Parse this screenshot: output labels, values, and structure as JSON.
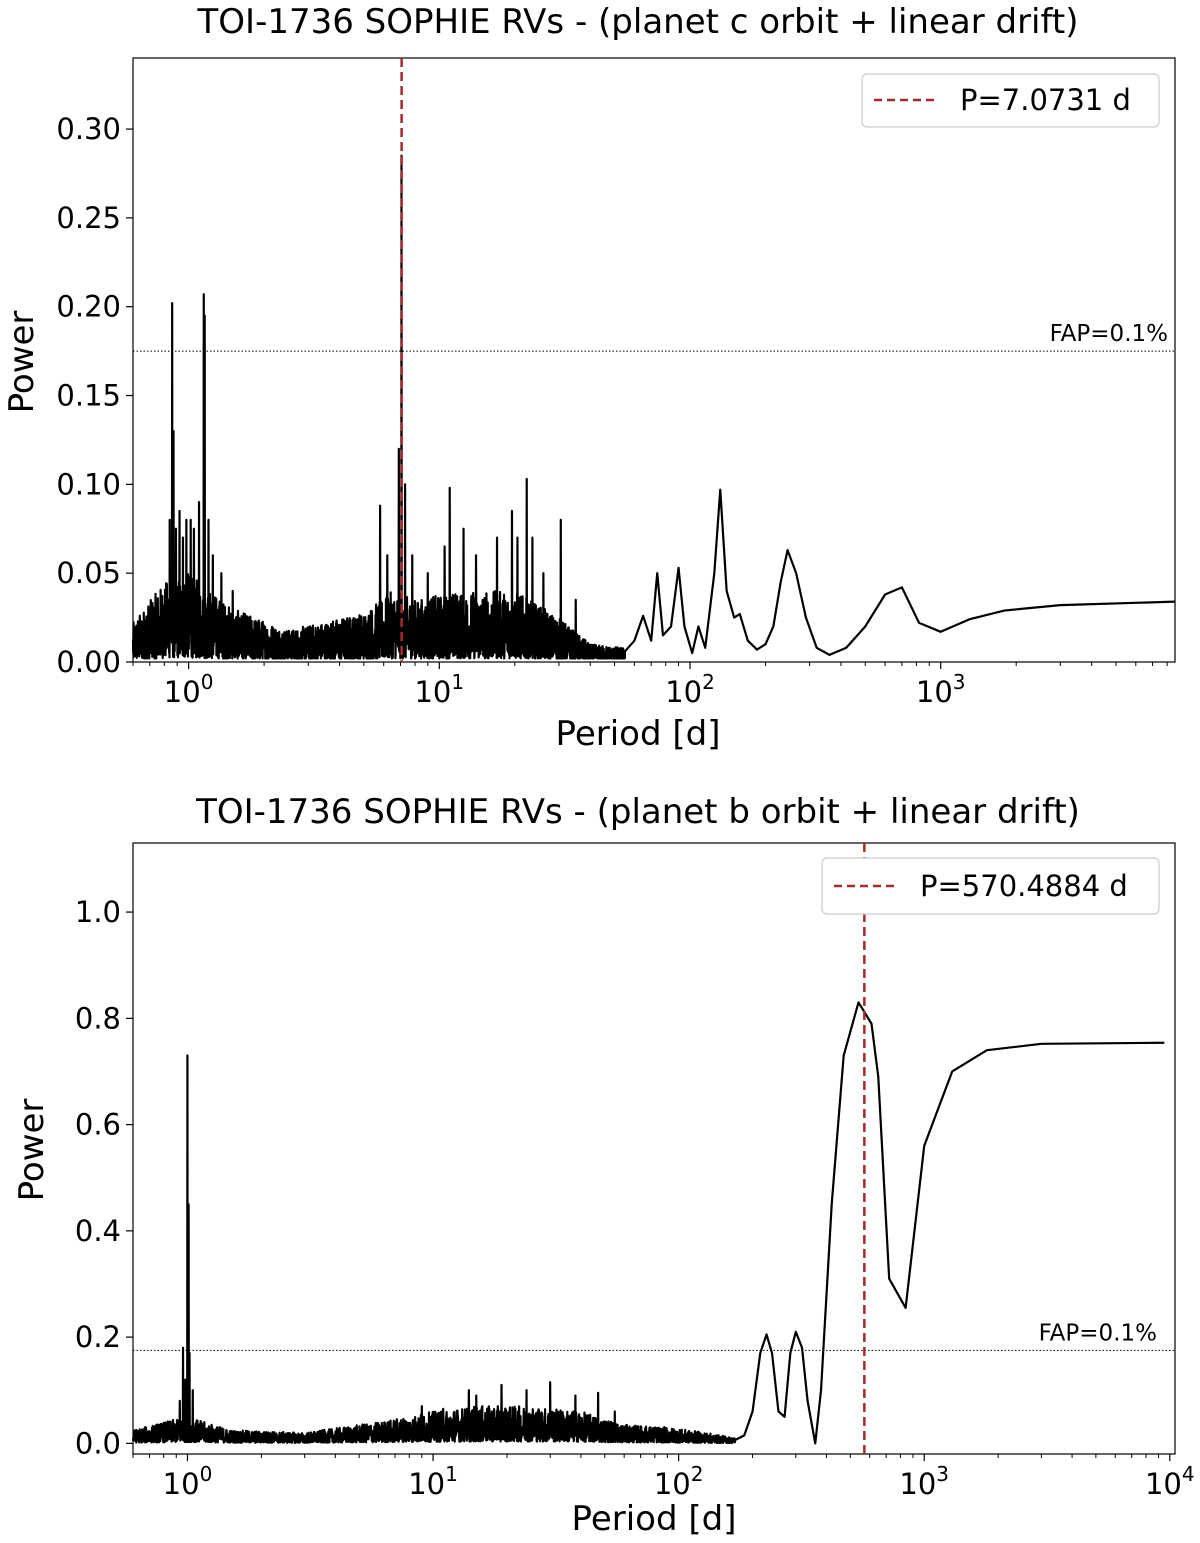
{
  "chart_data": [
    {
      "type": "line",
      "title": "TOI-1736 SOPHIE RVs - (planet c orbit + linear drift)",
      "xlabel": "Period [d]",
      "ylabel": "Power",
      "x_scale": "log",
      "xlim": [
        0.6,
        8600
      ],
      "ylim": [
        0,
        0.34
      ],
      "x_ticks": [
        {
          "value": 1,
          "label_base": "10",
          "label_exp": "0"
        },
        {
          "value": 10,
          "label_base": "10",
          "label_exp": "1"
        },
        {
          "value": 100,
          "label_base": "10",
          "label_exp": "2"
        },
        {
          "value": 1000,
          "label_base": "10",
          "label_exp": "3"
        }
      ],
      "y_ticks": [
        {
          "value": 0.0,
          "label": "0.00"
        },
        {
          "value": 0.05,
          "label": "0.05"
        },
        {
          "value": 0.1,
          "label": "0.10"
        },
        {
          "value": 0.15,
          "label": "0.15"
        },
        {
          "value": 0.2,
          "label": "0.20"
        },
        {
          "value": 0.25,
          "label": "0.25"
        },
        {
          "value": 0.3,
          "label": "0.30"
        }
      ],
      "fap_level": 0.175,
      "fap_label": "FAP=0.1%",
      "marked_period": 7.0731,
      "legend_label": "P=7.0731 d",
      "legend_position": "top-right",
      "line_color": "#000000",
      "marker_color": "#a52a2a",
      "noise_amp": [
        [
          0.6,
          0.022
        ],
        [
          0.8,
          0.045
        ],
        [
          1.0,
          0.05
        ],
        [
          1.5,
          0.03
        ],
        [
          2.5,
          0.018
        ],
        [
          5,
          0.028
        ],
        [
          6.5,
          0.04
        ],
        [
          8,
          0.035
        ],
        [
          12,
          0.04
        ],
        [
          20,
          0.04
        ],
        [
          30,
          0.025
        ],
        [
          40,
          0.01
        ],
        [
          55,
          0.008
        ]
      ],
      "spikes": [
        [
          0.86,
          0.202
        ],
        [
          0.87,
          0.13
        ],
        [
          0.84,
          0.08
        ],
        [
          0.89,
          0.075
        ],
        [
          0.92,
          0.085
        ],
        [
          0.95,
          0.07
        ],
        [
          0.98,
          0.08
        ],
        [
          1.02,
          0.08
        ],
        [
          1.05,
          0.075
        ],
        [
          1.1,
          0.09
        ],
        [
          1.15,
          0.207
        ],
        [
          1.16,
          0.195
        ],
        [
          1.2,
          0.08
        ],
        [
          1.25,
          0.06
        ],
        [
          1.35,
          0.05
        ],
        [
          1.5,
          0.04
        ],
        [
          5.8,
          0.088
        ],
        [
          6.2,
          0.06
        ],
        [
          6.9,
          0.12
        ],
        [
          7.07,
          0.285
        ],
        [
          7.3,
          0.1
        ],
        [
          7.8,
          0.06
        ],
        [
          9.0,
          0.05
        ],
        [
          10.5,
          0.065
        ],
        [
          11.0,
          0.098
        ],
        [
          12.5,
          0.075
        ],
        [
          14,
          0.06
        ],
        [
          17,
          0.07
        ],
        [
          19.5,
          0.085
        ],
        [
          20.5,
          0.07
        ],
        [
          22.3,
          0.103
        ],
        [
          23.5,
          0.07
        ],
        [
          26,
          0.05
        ],
        [
          30.5,
          0.08
        ],
        [
          35,
          0.035
        ]
      ],
      "smooth": [
        [
          55,
          0.006
        ],
        [
          60,
          0.012
        ],
        [
          65,
          0.026
        ],
        [
          70,
          0.012
        ],
        [
          74,
          0.05
        ],
        [
          78,
          0.015
        ],
        [
          84,
          0.02
        ],
        [
          90,
          0.053
        ],
        [
          95,
          0.02
        ],
        [
          102,
          0.005
        ],
        [
          108,
          0.02
        ],
        [
          115,
          0.008
        ],
        [
          125,
          0.05
        ],
        [
          132,
          0.097
        ],
        [
          140,
          0.04
        ],
        [
          150,
          0.025
        ],
        [
          158,
          0.027
        ],
        [
          170,
          0.012
        ],
        [
          185,
          0.007
        ],
        [
          200,
          0.01
        ],
        [
          215,
          0.02
        ],
        [
          230,
          0.045
        ],
        [
          245,
          0.063
        ],
        [
          265,
          0.05
        ],
        [
          290,
          0.025
        ],
        [
          320,
          0.008
        ],
        [
          360,
          0.004
        ],
        [
          420,
          0.008
        ],
        [
          500,
          0.02
        ],
        [
          600,
          0.038
        ],
        [
          700,
          0.042
        ],
        [
          820,
          0.022
        ],
        [
          1000,
          0.017
        ],
        [
          1300,
          0.024
        ],
        [
          1800,
          0.029
        ],
        [
          3000,
          0.032
        ],
        [
          8600,
          0.034
        ]
      ]
    },
    {
      "type": "line",
      "title": "TOI-1736 SOPHIE RVs - (planet b orbit + linear drift)",
      "xlabel": "Period [d]",
      "ylabel": "Power",
      "x_scale": "log",
      "xlim": [
        0.6,
        10500
      ],
      "ylim": [
        -0.02,
        1.13
      ],
      "x_ticks": [
        {
          "value": 1,
          "label_base": "10",
          "label_exp": "0"
        },
        {
          "value": 10,
          "label_base": "10",
          "label_exp": "1"
        },
        {
          "value": 100,
          "label_base": "10",
          "label_exp": "2"
        },
        {
          "value": 1000,
          "label_base": "10",
          "label_exp": "3"
        },
        {
          "value": 10000,
          "label_base": "10",
          "label_exp": "4"
        }
      ],
      "y_ticks": [
        {
          "value": 0.0,
          "label": "0.0"
        },
        {
          "value": 0.2,
          "label": "0.2"
        },
        {
          "value": 0.4,
          "label": "0.4"
        },
        {
          "value": 0.6,
          "label": "0.6"
        },
        {
          "value": 0.8,
          "label": "0.8"
        },
        {
          "value": 1.0,
          "label": "1.0"
        }
      ],
      "fap_level": 0.175,
      "fap_label": "FAP=0.1%",
      "marked_period": 570.4884,
      "legend_label": "P=570.4884 d",
      "legend_position": "top-right",
      "line_color": "#000000",
      "marker_color": "#a52a2a",
      "noise_amp": [
        [
          0.6,
          0.025
        ],
        [
          0.8,
          0.04
        ],
        [
          1.0,
          0.05
        ],
        [
          1.5,
          0.025
        ],
        [
          3,
          0.02
        ],
        [
          6,
          0.04
        ],
        [
          10,
          0.06
        ],
        [
          15,
          0.07
        ],
        [
          25,
          0.07
        ],
        [
          40,
          0.06
        ],
        [
          60,
          0.035
        ],
        [
          90,
          0.03
        ],
        [
          130,
          0.02
        ],
        [
          170,
          0.01
        ]
      ],
      "spikes": [
        [
          0.96,
          0.18
        ],
        [
          0.98,
          0.12
        ],
        [
          1.0,
          0.73
        ],
        [
          1.01,
          0.45
        ],
        [
          1.02,
          0.17
        ],
        [
          1.05,
          0.1
        ],
        [
          0.93,
          0.08
        ],
        [
          9,
          0.07
        ],
        [
          11,
          0.065
        ],
        [
          14,
          0.1
        ],
        [
          15,
          0.09
        ],
        [
          19,
          0.11
        ],
        [
          24,
          0.1
        ],
        [
          30,
          0.115
        ],
        [
          38,
          0.09
        ],
        [
          47,
          0.095
        ],
        [
          55,
          0.06
        ]
      ],
      "smooth": [
        [
          170,
          0.008
        ],
        [
          185,
          0.015
        ],
        [
          200,
          0.06
        ],
        [
          215,
          0.17
        ],
        [
          228,
          0.205
        ],
        [
          240,
          0.17
        ],
        [
          255,
          0.06
        ],
        [
          270,
          0.05
        ],
        [
          285,
          0.17
        ],
        [
          300,
          0.21
        ],
        [
          318,
          0.18
        ],
        [
          335,
          0.08
        ],
        [
          360,
          0.0
        ],
        [
          380,
          0.1
        ],
        [
          420,
          0.45
        ],
        [
          470,
          0.73
        ],
        [
          540,
          0.83
        ],
        [
          610,
          0.79
        ],
        [
          650,
          0.69
        ],
        [
          720,
          0.31
        ],
        [
          840,
          0.255
        ],
        [
          1000,
          0.56
        ],
        [
          1300,
          0.7
        ],
        [
          1800,
          0.74
        ],
        [
          3000,
          0.752
        ],
        [
          9500,
          0.754
        ]
      ]
    }
  ]
}
